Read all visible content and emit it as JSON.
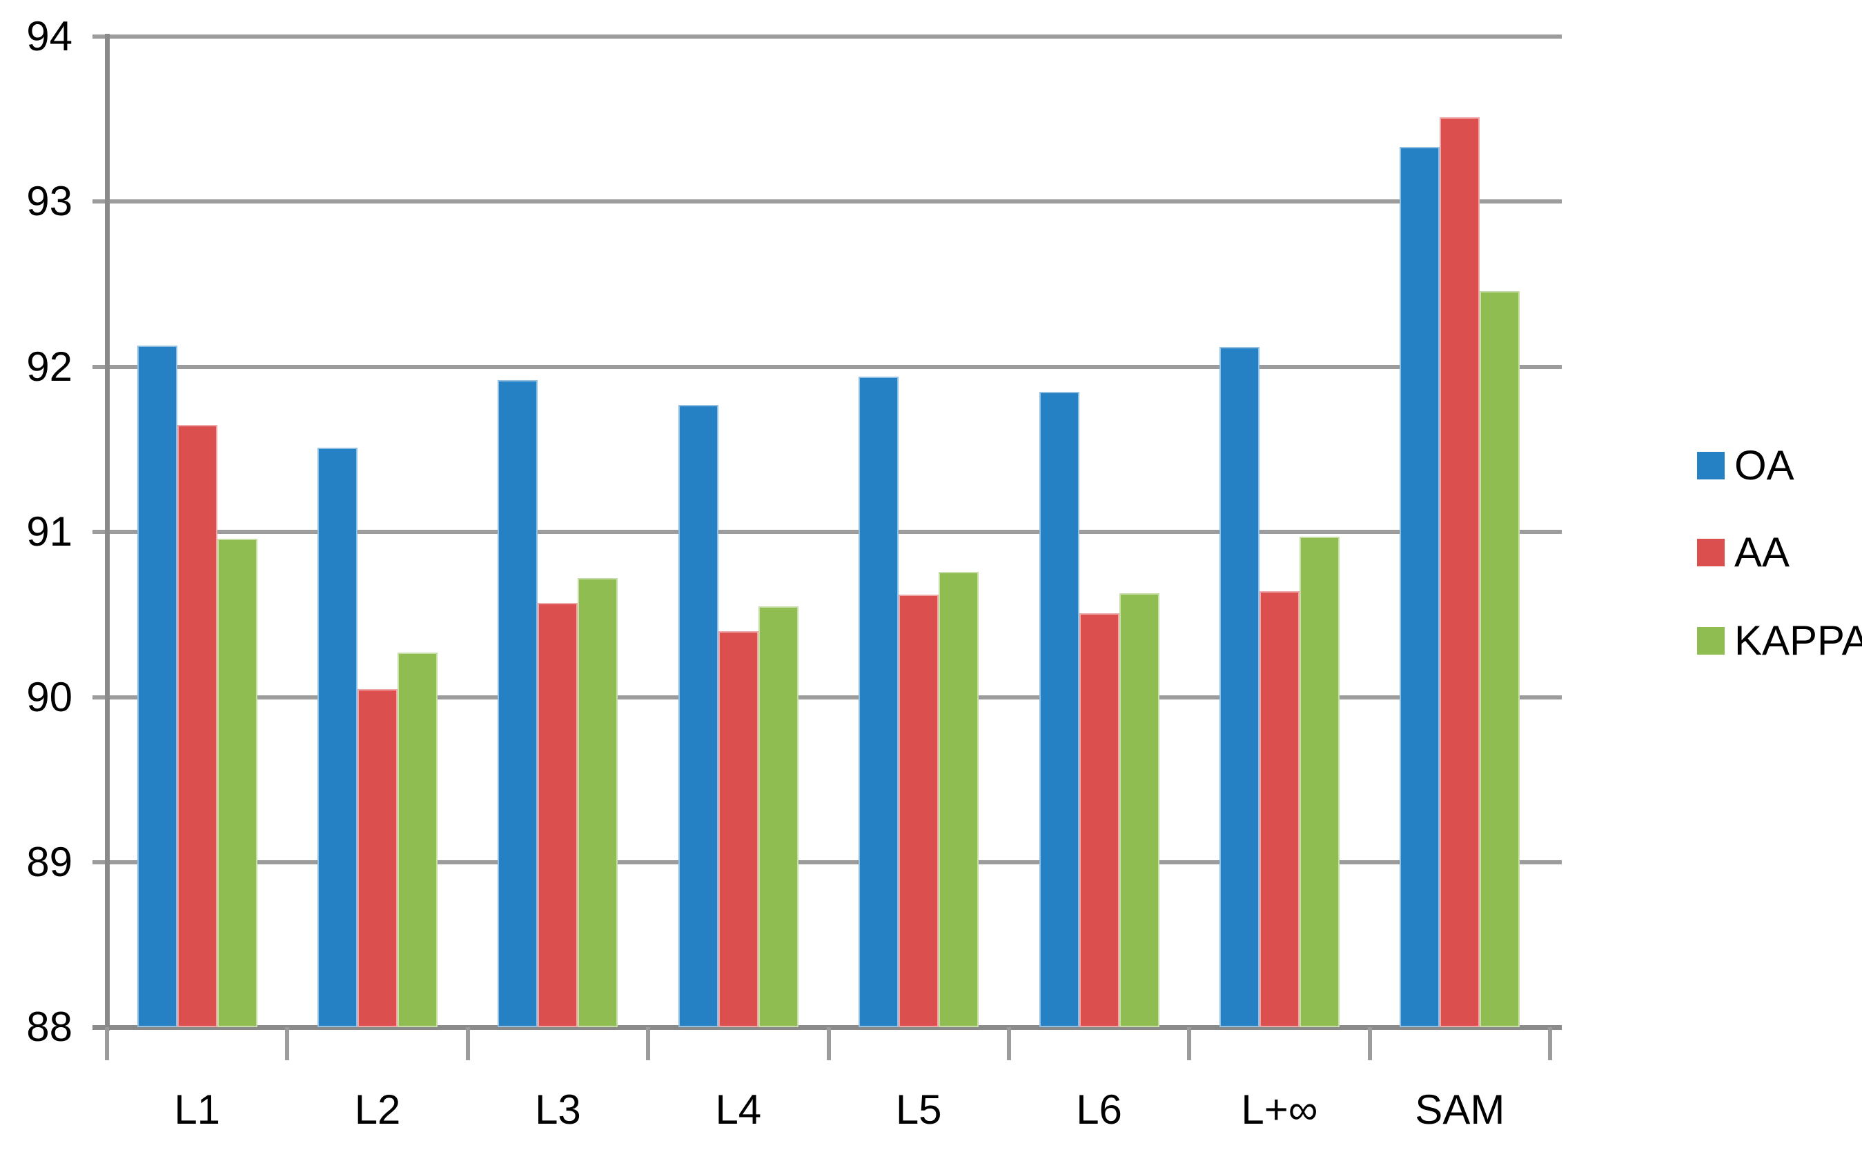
{
  "chart_data": {
    "type": "bar",
    "title": "",
    "xlabel": "",
    "ylabel": "",
    "categories": [
      "L1",
      "L2",
      "L3",
      "L4",
      "L5",
      "L6",
      "L+∞",
      "SAM"
    ],
    "series": [
      {
        "name": "OA",
        "color": "#2581c4",
        "values": [
          92.13,
          91.51,
          91.92,
          91.77,
          91.94,
          91.85,
          92.12,
          93.33
        ]
      },
      {
        "name": "AA",
        "color": "#db504e",
        "values": [
          91.65,
          90.05,
          90.57,
          90.4,
          90.62,
          90.51,
          90.64,
          93.51
        ]
      },
      {
        "name": "KAPPA",
        "color": "#90bd51",
        "values": [
          90.96,
          90.27,
          90.72,
          90.55,
          90.76,
          90.63,
          90.97,
          92.46
        ]
      }
    ],
    "ylim": [
      88,
      94
    ],
    "y_ticks": [
      "94",
      "93",
      "92",
      "91",
      "90",
      "89",
      "88"
    ],
    "grid": true,
    "legend_position": "right",
    "colors": {
      "gridline": "#9c9c9c",
      "axis": "#8a8a8a",
      "text": "#000000",
      "background": "#ffffff"
    }
  }
}
